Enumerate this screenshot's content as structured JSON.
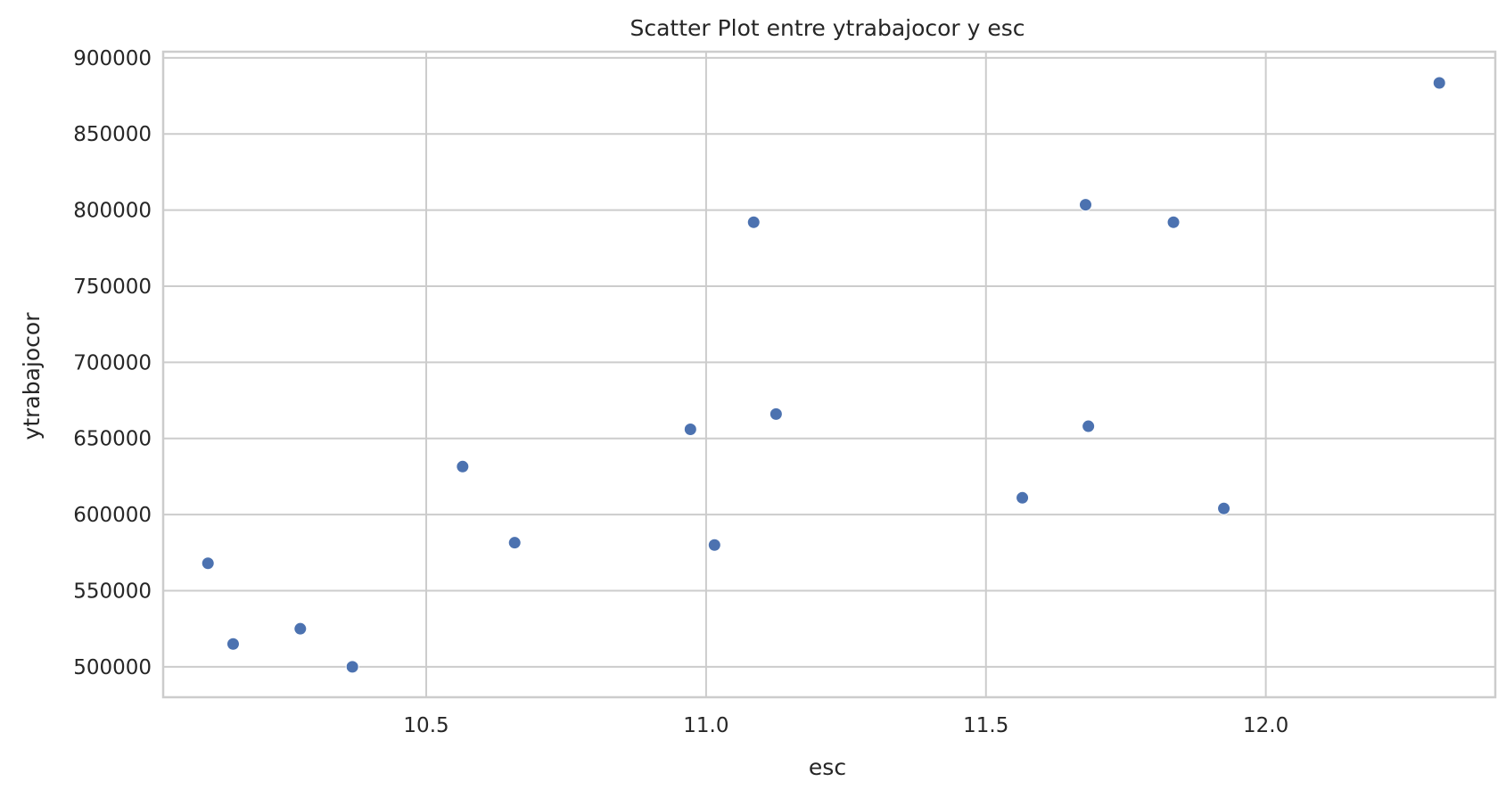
{
  "chart_data": {
    "type": "scatter",
    "title": "Scatter Plot entre ytrabajocor y esc",
    "xlabel": "esc",
    "ylabel": "ytrabajocor",
    "xlim": [
      10.03,
      12.41
    ],
    "ylim": [
      480000,
      904000
    ],
    "xticks": [
      10.5,
      11.0,
      11.5,
      12.0
    ],
    "xtick_labels": [
      "10.5",
      "11.0",
      "11.5",
      "12.0"
    ],
    "yticks": [
      500000,
      550000,
      600000,
      650000,
      700000,
      750000,
      800000,
      850000,
      900000
    ],
    "ytick_labels": [
      "500000",
      "550000",
      "600000",
      "650000",
      "700000",
      "750000",
      "800000",
      "850000",
      "900000"
    ],
    "grid": true,
    "marker_color": "#4c72b0",
    "points": [
      {
        "x": 10.11,
        "y": 568000
      },
      {
        "x": 10.155,
        "y": 515000
      },
      {
        "x": 10.275,
        "y": 525000
      },
      {
        "x": 10.368,
        "y": 500000
      },
      {
        "x": 10.565,
        "y": 631500
      },
      {
        "x": 10.658,
        "y": 581500
      },
      {
        "x": 10.972,
        "y": 656000
      },
      {
        "x": 11.015,
        "y": 580000
      },
      {
        "x": 11.085,
        "y": 792000
      },
      {
        "x": 11.125,
        "y": 666000
      },
      {
        "x": 11.565,
        "y": 611000
      },
      {
        "x": 11.678,
        "y": 803500
      },
      {
        "x": 11.683,
        "y": 658000
      },
      {
        "x": 11.835,
        "y": 792000
      },
      {
        "x": 11.925,
        "y": 604000
      },
      {
        "x": 12.31,
        "y": 883500
      }
    ]
  }
}
